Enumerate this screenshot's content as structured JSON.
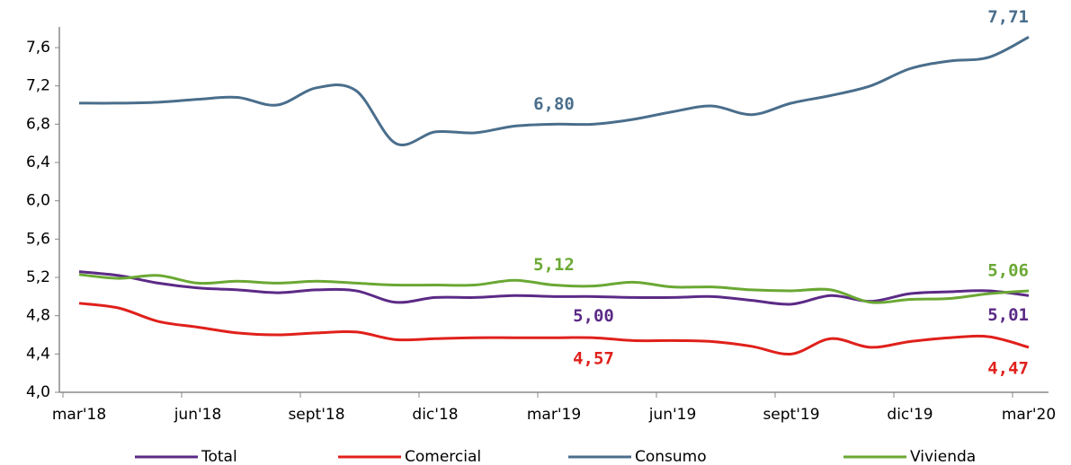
{
  "chart_data": {
    "type": "line",
    "categories": [
      "mar'18",
      null,
      null,
      "jun'18",
      null,
      null,
      "sept'18",
      null,
      null,
      "dic'18",
      null,
      null,
      "mar'19",
      null,
      null,
      "jun'19",
      null,
      null,
      "sept'19",
      null,
      null,
      "dic'19",
      null,
      null,
      "mar'20"
    ],
    "series": [
      {
        "name": "Total",
        "color": "#5b2a86",
        "values": [
          5.26,
          5.22,
          5.14,
          5.09,
          5.07,
          5.04,
          5.07,
          5.06,
          4.94,
          4.99,
          4.99,
          5.01,
          5.0,
          5.0,
          4.99,
          4.99,
          5.0,
          4.96,
          4.92,
          5.01,
          4.95,
          5.03,
          5.05,
          5.06,
          5.01
        ],
        "value_labels": [
          null,
          null,
          null,
          null,
          null,
          null,
          null,
          null,
          null,
          null,
          null,
          null,
          null,
          "5,00",
          null,
          null,
          null,
          null,
          null,
          null,
          null,
          null,
          null,
          null,
          "5,01"
        ]
      },
      {
        "name": "Comercial",
        "color": "#e0201b",
        "values": [
          4.93,
          4.88,
          4.74,
          4.68,
          4.62,
          4.6,
          4.62,
          4.63,
          4.55,
          4.56,
          4.57,
          4.57,
          4.57,
          4.57,
          4.54,
          4.54,
          4.53,
          4.48,
          4.4,
          4.56,
          4.47,
          4.53,
          4.57,
          4.58,
          4.47
        ],
        "value_labels": [
          null,
          null,
          null,
          null,
          null,
          null,
          null,
          null,
          null,
          null,
          null,
          null,
          null,
          "4,57",
          null,
          null,
          null,
          null,
          null,
          null,
          null,
          null,
          null,
          null,
          "4,47"
        ]
      },
      {
        "name": "Consumo",
        "color": "#4a6e8c",
        "values": [
          7.02,
          7.02,
          7.03,
          7.06,
          7.08,
          7.0,
          7.18,
          7.15,
          6.6,
          6.72,
          6.71,
          6.78,
          6.8,
          6.8,
          6.85,
          6.93,
          6.99,
          6.9,
          7.02,
          7.1,
          7.2,
          7.38,
          7.46,
          7.5,
          7.71
        ],
        "value_labels": [
          null,
          null,
          null,
          null,
          null,
          null,
          null,
          null,
          null,
          null,
          null,
          null,
          "6,80",
          null,
          null,
          null,
          null,
          null,
          null,
          null,
          null,
          null,
          null,
          null,
          "7,71"
        ]
      },
      {
        "name": "Vivienda",
        "color": "#6aa833",
        "values": [
          5.23,
          5.19,
          5.22,
          5.14,
          5.16,
          5.14,
          5.16,
          5.14,
          5.12,
          5.12,
          5.12,
          5.17,
          5.12,
          5.11,
          5.15,
          5.1,
          5.1,
          5.07,
          5.06,
          5.07,
          4.94,
          4.97,
          4.98,
          5.03,
          5.06
        ],
        "value_labels": [
          null,
          null,
          null,
          null,
          null,
          null,
          null,
          null,
          null,
          null,
          null,
          null,
          "5,12",
          null,
          null,
          null,
          null,
          null,
          null,
          null,
          null,
          null,
          null,
          null,
          "5,06"
        ]
      }
    ],
    "ylim": [
      4.0,
      7.8
    ],
    "yticks": [
      {
        "value": 4.0,
        "label": "4,0"
      },
      {
        "value": 4.4,
        "label": "4,4"
      },
      {
        "value": 4.8,
        "label": "4,8"
      },
      {
        "value": 5.2,
        "label": "5,2"
      },
      {
        "value": 5.6,
        "label": "5,6"
      },
      {
        "value": 6.0,
        "label": "6,0"
      },
      {
        "value": 6.4,
        "label": "6,4"
      },
      {
        "value": 6.8,
        "label": "6,8"
      },
      {
        "value": 7.2,
        "label": "7,2"
      },
      {
        "value": 7.6,
        "label": "7,6"
      }
    ],
    "legend": "bottom"
  }
}
